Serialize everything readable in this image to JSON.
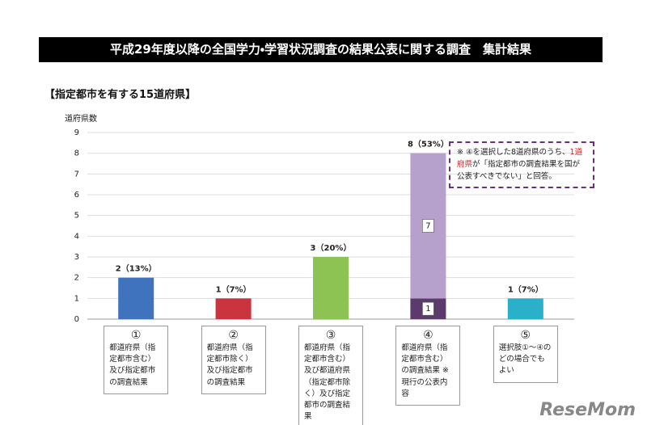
{
  "header": {
    "title": "平成29年度以降の全国学力・学習状況調査の結果公表に関する調査　集計結果"
  },
  "subtitle": "【指定都市を有する15道府県】",
  "chart_data": {
    "type": "stacked_bar",
    "ylabel": "道府県数",
    "ylim": [
      0,
      9
    ],
    "yticks": [
      0,
      1,
      2,
      3,
      4,
      5,
      6,
      7,
      8,
      9
    ],
    "grid": true,
    "category_numbers": [
      "①",
      "②",
      "③",
      "④",
      "⑤"
    ],
    "categories": [
      "都道府県（指定都市含む）及び指定都市の調査結果",
      "都道府県（指定都市除く）及び指定都市の調査結果",
      "都道府県（指定都市含む）及び都道府県（指定都市除く）及び指定都市の調査結果",
      "都道府県（指定都市含む）の調査結果 ※現行の公表内容",
      "選択肢①～④のどの場合でもよい"
    ],
    "series": [
      {
        "values": [
          2,
          1,
          3,
          1,
          1
        ],
        "colors": [
          "#3f73be",
          "#c9343e",
          "#8cc352",
          "#5c3a6b",
          "#2ab0c8"
        ]
      },
      {
        "values": [
          null,
          null,
          null,
          7,
          null
        ],
        "colors": [
          null,
          null,
          null,
          "#b6a0cc",
          null
        ]
      }
    ],
    "value_labels": [
      "2（13%）",
      "1（7%）",
      "3（20%）",
      "8（53%）",
      "1（7%）"
    ],
    "annotation": [
      "※ ④を選択した8道府県のうち、",
      "1道府県",
      "が「指定都市の調査結果を国が公表すべきでない」と回答。"
    ],
    "annotation_highlight_color": "#e02020"
  },
  "watermark": "ReseMom"
}
